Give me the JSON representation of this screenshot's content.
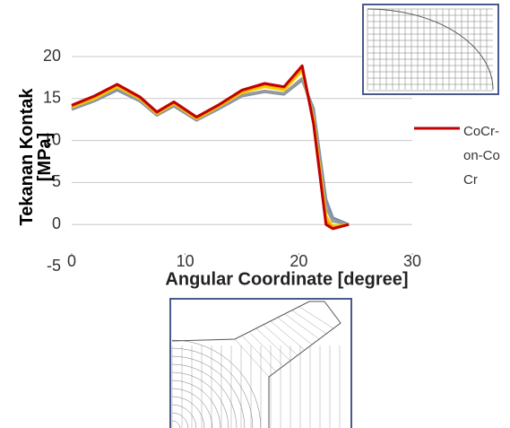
{
  "chart_data": {
    "type": "line",
    "x": [
      0,
      2,
      4,
      6,
      7.5,
      9,
      11,
      13,
      15,
      17,
      18.7,
      20.3,
      21.3,
      22.4,
      23,
      24.4
    ],
    "series": [
      {
        "color": "#7a8fa8",
        "values": [
          13.7,
          14.7,
          16.0,
          14.7,
          13.0,
          14.1,
          12.4,
          13.8,
          15.3,
          15.8,
          15.5,
          17.2,
          13.8,
          3.0,
          0.8,
          0
        ]
      },
      {
        "color": "#9a9a9a",
        "values": [
          13.8,
          14.8,
          16.2,
          14.8,
          13.1,
          14.2,
          12.5,
          13.9,
          15.4,
          15.9,
          15.6,
          17.4,
          13.2,
          2.0,
          0.4,
          0
        ]
      },
      {
        "color": "#f5d000",
        "values": [
          14.0,
          15.0,
          16.4,
          15.0,
          13.2,
          14.4,
          12.6,
          14.1,
          15.7,
          16.4,
          16.0,
          18.3,
          12.6,
          1.0,
          -0.2,
          0
        ]
      },
      {
        "color": "#f39200",
        "values": [
          14.1,
          15.2,
          16.6,
          15.1,
          13.3,
          14.5,
          12.7,
          14.2,
          15.9,
          16.7,
          16.3,
          18.6,
          12.3,
          0.4,
          -0.4,
          0
        ]
      },
      {
        "name": "CoCr-on-CoCr",
        "color": "#c00000",
        "values": [
          14.2,
          15.3,
          16.7,
          15.2,
          13.4,
          14.6,
          12.8,
          14.3,
          16.0,
          16.8,
          16.4,
          18.9,
          12.0,
          0,
          -0.5,
          0
        ]
      }
    ],
    "xlabel": "Angular Coordinate [degree]",
    "ylabel": "Tekanan Kontak [MPa]",
    "xlim": [
      0,
      30
    ],
    "xticks": [
      0,
      10,
      20,
      30
    ],
    "ylim": [
      -5,
      20
    ],
    "yticks": [
      -5,
      0,
      5,
      10,
      15,
      20
    ],
    "grid": true,
    "legend": "right"
  }
}
